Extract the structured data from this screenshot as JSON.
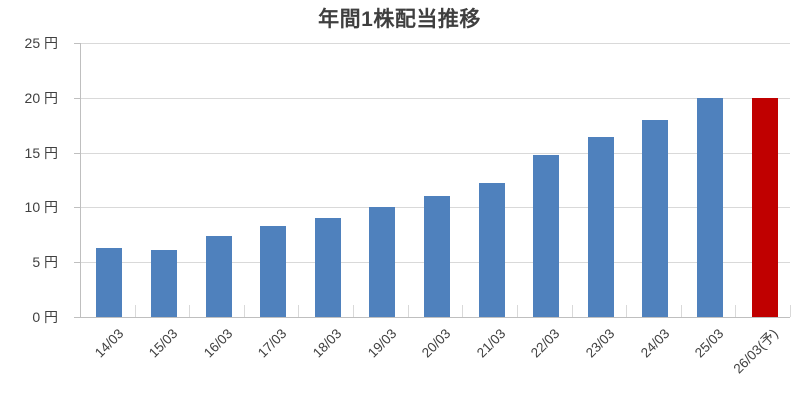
{
  "chart_data": {
    "type": "bar",
    "title": "年間1株配当推移",
    "categories": [
      "14/03",
      "15/03",
      "16/03",
      "17/03",
      "18/03",
      "19/03",
      "20/03",
      "21/03",
      "22/03",
      "23/03",
      "24/03",
      "25/03",
      "26/03(予)"
    ],
    "values": [
      6.3,
      6.1,
      7.4,
      8.3,
      9.0,
      10.0,
      11.0,
      12.2,
      14.8,
      16.4,
      18.0,
      20.0,
      20.0
    ],
    "unit": "円",
    "xlabel": "",
    "ylabel": "",
    "ylim": [
      0,
      25
    ],
    "ytick_step": 5,
    "ytick_labels": [
      "0 円",
      "5 円",
      "10 円",
      "15 円",
      "20 円",
      "25 円"
    ],
    "grid": true,
    "legend": false,
    "highlight_index": 12
  },
  "colors": {
    "bar": "#4F81BD",
    "highlight_bar": "#C00000",
    "gridline": "#D9D9D9",
    "axis_line": "#BFBFBF",
    "text": "#404040",
    "title_text": "#3F3F3F",
    "background": "#FFFFFF"
  }
}
